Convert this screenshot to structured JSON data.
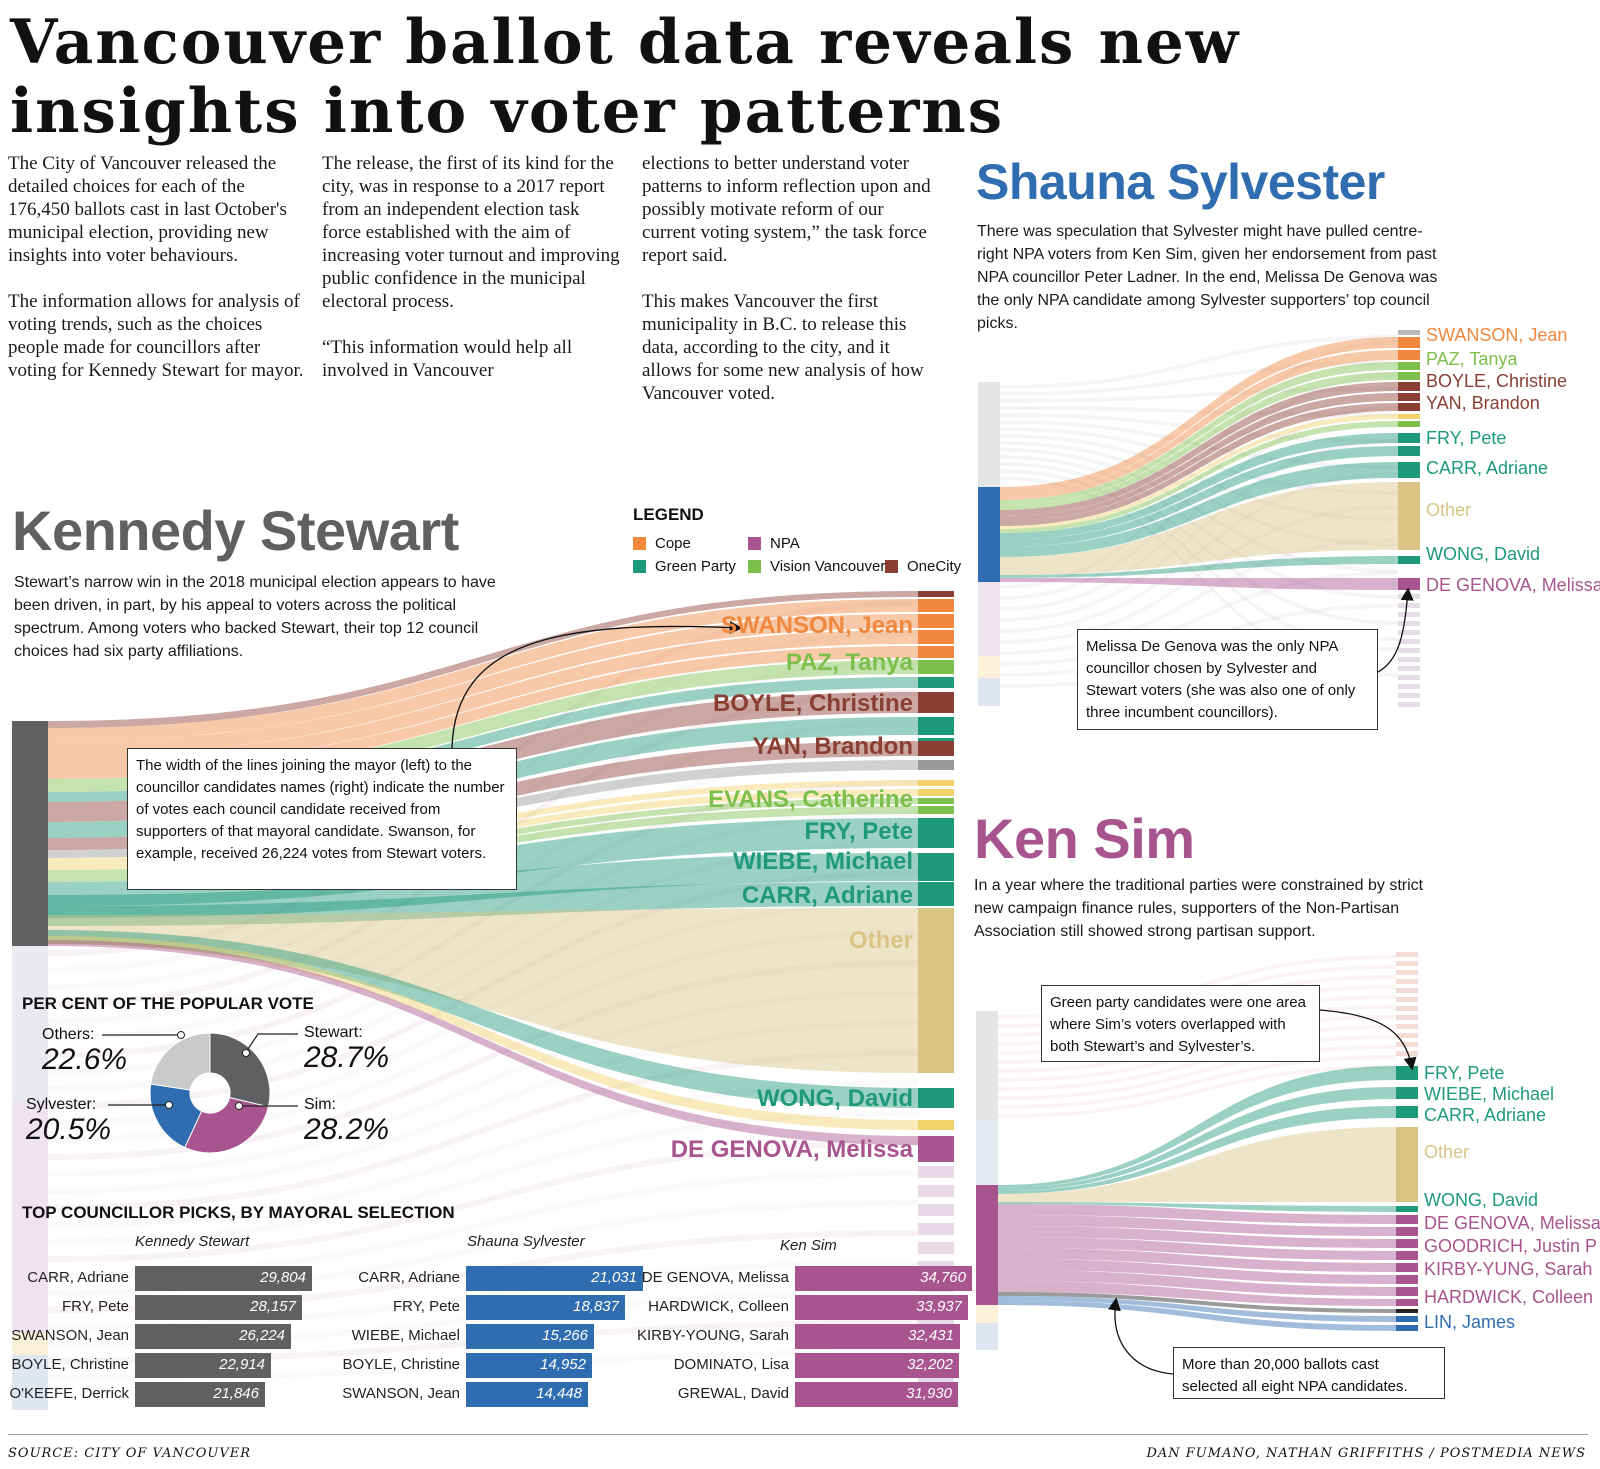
{
  "headline": {
    "line1": "Vancouver ballot data reveals new",
    "line2": "insights into voter patterns"
  },
  "intro": {
    "col1": [
      "The City of Vancouver released the detailed choices for each of the 176,450 ballots cast in last October's municipal election, providing new insights into voter behaviours.",
      "The information allows for analysis of voting trends, such as the choices people made for councillors after voting for Kennedy Stewart for mayor."
    ],
    "col2": [
      "The release, the first of its kind for the city, was in response to a 2017 report from an independent election task force established with the aim of increasing voter turnout and improving public confidence in the municipal electoral process.",
      "“This information would help all involved in Vancouver"
    ],
    "col3": [
      "elections to better understand voter patterns to inform reflection upon and possibly motivate reform of our current voting system,” the task force report said.",
      "This makes Vancouver the first municipality in B.C. to release this data, according to the city, and it allows for some new analysis of how Vancouver voted."
    ]
  },
  "stewart": {
    "name": "Kennedy Stewart",
    "dek": "Stewart’s narrow win in the 2018 municipal election appears to have been driven, in part, by his appeal to voters across the political spectrum. Among voters who backed Stewart, their top 12 council choices had six party affiliations.",
    "callout": "The width of the lines joining the mayor (left) to the councillor candidates names (right) indicate the number of votes each council candidate received from supporters of that mayoral candidate. Swanson, for example, received 26,224 votes from Stewart voters.",
    "labels": [
      "SWANSON, Jean",
      "PAZ, Tanya",
      "BOYLE, Christine",
      "YAN, Brandon",
      "EVANS, Catherine",
      "FRY, Pete",
      "WIEBE, Michael",
      "CARR, Adriane",
      "Other",
      "WONG, David",
      "DE GENOVA, Melissa"
    ]
  },
  "legend": {
    "title": "LEGEND",
    "items": [
      {
        "label": "Cope",
        "color": "#f0883e"
      },
      {
        "label": "NPA",
        "color": "#a8558f"
      },
      {
        "label": "Green Party",
        "color": "#1e9a7a"
      },
      {
        "label": "Vision Vancouver",
        "color": "#7cc04b"
      },
      {
        "label": "OneCity",
        "color": "#8b3e33"
      }
    ]
  },
  "sylvester": {
    "name": "Shauna Sylvester",
    "dek": "There was speculation that Sylvester might have pulled centre-right NPA voters from Ken Sim, given her endorsement from past NPA councillor Peter Ladner. In the end, Melissa De Genova was the only NPA candidate among Sylvester supporters’ top council picks.",
    "callout": "Melissa De Genova was the only NPA councillor chosen by Sylvester and Stewart voters (she was also one of only three incumbent councillors).",
    "labels": [
      "SWANSON, Jean",
      "PAZ, Tanya",
      "BOYLE, Christine",
      "YAN, Brandon",
      "FRY, Pete",
      "CARR, Adriane",
      "Other",
      "WONG, David",
      "DE GENOVA, Melissa"
    ]
  },
  "sim": {
    "name": "Ken Sim",
    "dek": "In a year where the traditional parties were constrained by strict new campaign finance rules, supporters of the Non-Partisan Association still showed strong partisan support.",
    "callout_green": "Green party candidates were one area where Sim’s voters overlapped with both Stewart’s and Sylvester’s.",
    "callout_npa": "More than 20,000 ballots cast selected all eight NPA candidates.",
    "labels": [
      "FRY, Pete",
      "WIEBE, Michael",
      "CARR, Adriane",
      "Other",
      "WONG, David",
      "DE GENOVA, Melissa",
      "GOODRICH, Justin P",
      "KIRBY-YUNG, Sarah",
      "HARDWICK, Colleen",
      "LIN, James"
    ]
  },
  "chart_data": [
    {
      "type": "pie",
      "title": "PER CENT OF THE POPULAR VOTE",
      "slices": [
        {
          "label": "Stewart:",
          "value": 28.7,
          "display": "28.7%",
          "color": "#5f6062"
        },
        {
          "label": "Sim:",
          "value": 28.2,
          "display": "28.2%",
          "color": "#a8558f"
        },
        {
          "label": "Sylvester:",
          "value": 20.5,
          "display": "20.5%",
          "color": "#2f6db0"
        },
        {
          "label": "Others:",
          "value": 22.6,
          "display": "22.6%",
          "color": "#c9cacc"
        }
      ]
    },
    {
      "type": "bar",
      "title": "TOP COUNCILLOR PICKS, BY MAYORAL SELECTION",
      "max": 34760,
      "groups": [
        {
          "name": "Kennedy Stewart",
          "color": "#5f6062",
          "bars": [
            {
              "label": "CARR, Adriane",
              "value": 29804,
              "display": "29,804"
            },
            {
              "label": "FRY, Pete",
              "value": 28157,
              "display": "28,157"
            },
            {
              "label": "SWANSON, Jean",
              "value": 26224,
              "display": "26,224"
            },
            {
              "label": "BOYLE, Christine",
              "value": 22914,
              "display": "22,914"
            },
            {
              "label": "O'KEEFE, Derrick",
              "value": 21846,
              "display": "21,846"
            }
          ]
        },
        {
          "name": "Shauna Sylvester",
          "color": "#2f6db0",
          "bars": [
            {
              "label": "CARR, Adriane",
              "value": 21031,
              "display": "21,031"
            },
            {
              "label": "FRY, Pete",
              "value": 18837,
              "display": "18,837"
            },
            {
              "label": "WIEBE, Michael",
              "value": 15266,
              "display": "15,266"
            },
            {
              "label": "BOYLE, Christine",
              "value": 14952,
              "display": "14,952"
            },
            {
              "label": "SWANSON, Jean",
              "value": 14448,
              "display": "14,448"
            }
          ]
        },
        {
          "name": "Ken Sim",
          "color": "#a8558f",
          "bars": [
            {
              "label": "DE GENOVA, Melissa",
              "value": 34760,
              "display": "34,760"
            },
            {
              "label": "HARDWICK, Colleen",
              "value": 33937,
              "display": "33,937"
            },
            {
              "label": "KIRBY-YOUNG, Sarah",
              "value": 32431,
              "display": "32,431"
            },
            {
              "label": "DOMINATO, Lisa",
              "value": 32202,
              "display": "32,202"
            },
            {
              "label": "GREWAL, David",
              "value": 31930,
              "display": "31,930"
            }
          ]
        }
      ]
    }
  ],
  "footer": {
    "source": "SOURCE: CITY OF VANCOUVER",
    "credit": "DAN FUMANO, NATHAN GRIFFITHS / POSTMEDIA NEWS"
  }
}
